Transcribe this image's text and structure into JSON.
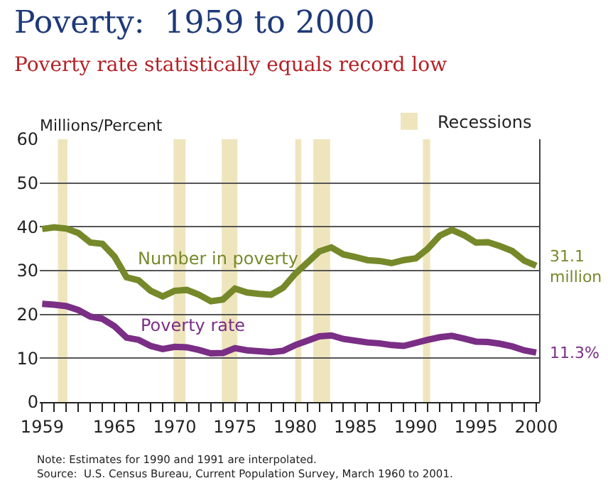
{
  "chart_data": {
    "type": "line",
    "title": "Poverty:  1959 to 2000",
    "subtitle": "Poverty rate statistically equals record low",
    "ylabel": "Millions/Percent",
    "x": [
      1959,
      1960,
      1961,
      1962,
      1963,
      1964,
      1965,
      1966,
      1967,
      1968,
      1969,
      1970,
      1971,
      1972,
      1973,
      1974,
      1975,
      1976,
      1977,
      1978,
      1979,
      1980,
      1981,
      1982,
      1983,
      1984,
      1985,
      1986,
      1987,
      1988,
      1989,
      1990,
      1991,
      1992,
      1993,
      1994,
      1995,
      1996,
      1997,
      1998,
      1999,
      2000
    ],
    "series": [
      {
        "name": "Number in poverty",
        "color": "#76892a",
        "values": [
          39.5,
          39.9,
          39.6,
          38.6,
          36.4,
          36.1,
          33.2,
          28.5,
          27.8,
          25.4,
          24.1,
          25.4,
          25.6,
          24.5,
          23.0,
          23.4,
          25.9,
          25.0,
          24.7,
          24.5,
          26.1,
          29.3,
          31.8,
          34.4,
          35.3,
          33.7,
          33.1,
          32.4,
          32.2,
          31.7,
          32.4,
          32.8,
          35.0,
          38.0,
          39.3,
          38.1,
          36.4,
          36.5,
          35.6,
          34.5,
          32.3,
          31.1
        ],
        "value_labels": [
          null,
          null,
          null,
          null,
          null,
          null,
          null,
          null,
          null,
          null,
          null,
          null,
          null,
          null,
          null,
          null,
          null,
          null,
          null,
          null,
          null,
          null,
          null,
          null,
          null,
          null,
          null,
          null,
          null,
          null,
          null,
          null,
          null,
          null,
          null,
          null,
          null,
          null,
          null,
          null,
          null,
          "31.1 million"
        ]
      },
      {
        "name": "Poverty rate",
        "color": "#7a2e85",
        "values": [
          22.4,
          22.2,
          21.9,
          21.0,
          19.5,
          19.0,
          17.3,
          14.7,
          14.2,
          12.8,
          12.1,
          12.6,
          12.5,
          11.9,
          11.1,
          11.2,
          12.3,
          11.8,
          11.6,
          11.4,
          11.7,
          13.0,
          14.0,
          15.0,
          15.2,
          14.4,
          14.0,
          13.6,
          13.4,
          13.0,
          12.8,
          13.5,
          14.2,
          14.8,
          15.1,
          14.5,
          13.8,
          13.7,
          13.3,
          12.7,
          11.8,
          11.3
        ],
        "value_labels": [
          null,
          null,
          null,
          null,
          null,
          null,
          null,
          null,
          null,
          null,
          null,
          null,
          null,
          null,
          null,
          null,
          null,
          null,
          null,
          null,
          null,
          null,
          null,
          null,
          null,
          null,
          null,
          null,
          null,
          null,
          null,
          null,
          null,
          null,
          null,
          null,
          null,
          null,
          null,
          null,
          null,
          "11.3%"
        ]
      }
    ],
    "xlim": [
      1958.8,
      2000.3
    ],
    "xticks": [
      1959,
      {
        "value": 1960,
        "label": null
      },
      {
        "value": 1961,
        "label": null
      },
      {
        "value": 1962,
        "label": null
      },
      {
        "value": 1963,
        "label": null
      },
      {
        "value": 1964,
        "label": null
      },
      1965,
      {
        "value": 1966,
        "label": null
      },
      {
        "value": 1967,
        "label": null
      },
      {
        "value": 1968,
        "label": null
      },
      {
        "value": 1969,
        "label": null
      },
      1970,
      {
        "value": 1971,
        "label": null
      },
      {
        "value": 1972,
        "label": null
      },
      {
        "value": 1973,
        "label": null
      },
      {
        "value": 1974,
        "label": null
      },
      1975,
      {
        "value": 1976,
        "label": null
      },
      {
        "value": 1977,
        "label": null
      },
      {
        "value": 1978,
        "label": null
      },
      {
        "value": 1979,
        "label": null
      },
      1980,
      {
        "value": 1981,
        "label": null
      },
      {
        "value": 1982,
        "label": null
      },
      {
        "value": 1983,
        "label": null
      },
      {
        "value": 1984,
        "label": null
      },
      1985,
      {
        "value": 1986,
        "label": null
      },
      {
        "value": 1987,
        "label": null
      },
      {
        "value": 1988,
        "label": null
      },
      {
        "value": 1989,
        "label": null
      },
      1990,
      {
        "value": 1991,
        "label": null
      },
      {
        "value": 1992,
        "label": null
      },
      {
        "value": 1993,
        "label": null
      },
      {
        "value": 1994,
        "label": null
      },
      1995,
      {
        "value": 1996,
        "label": null
      },
      {
        "value": 1997,
        "label": null
      },
      {
        "value": 1998,
        "label": null
      },
      {
        "value": 1999,
        "label": null
      },
      2000
    ],
    "ylim": [
      0,
      60
    ],
    "yticks": [
      0,
      10,
      20,
      30,
      40,
      50,
      60
    ],
    "bands": [
      {
        "axis": "x",
        "from": 1960.3,
        "to": 1961.1,
        "label": "Recessions",
        "color": "#efe5bd"
      },
      {
        "axis": "x",
        "from": 1969.9,
        "to": 1970.9,
        "color": "#efe5bd"
      },
      {
        "axis": "x",
        "from": 1973.9,
        "to": 1975.2,
        "color": "#efe5bd"
      },
      {
        "axis": "x",
        "from": 1980.0,
        "to": 1980.5,
        "color": "#efe5bd"
      },
      {
        "axis": "x",
        "from": 1981.5,
        "to": 1982.9,
        "color": "#efe5bd"
      },
      {
        "axis": "x",
        "from": 1990.6,
        "to": 1991.2,
        "color": "#efe5bd"
      }
    ],
    "annotations": [
      "Note: Estimates for 1990 and 1991 are interpolated.",
      "Source:  U.S. Census Bureau, Current Population Survey, March 1960 to 2001."
    ],
    "grid": "y",
    "legend": "top right",
    "marker": "none",
    "line_style": "solid"
  }
}
